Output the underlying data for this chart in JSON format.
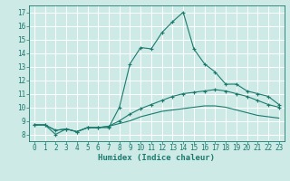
{
  "xlabel": "Humidex (Indice chaleur)",
  "background_color": "#ceeae6",
  "line_color": "#1a7a6e",
  "grid_color": "#b0d8d4",
  "xlim": [
    -0.5,
    23.5
  ],
  "ylim": [
    7.5,
    17.5
  ],
  "yticks": [
    8,
    9,
    10,
    11,
    12,
    13,
    14,
    15,
    16,
    17
  ],
  "xticks": [
    0,
    1,
    2,
    3,
    4,
    5,
    6,
    7,
    8,
    9,
    10,
    11,
    12,
    13,
    14,
    15,
    16,
    17,
    18,
    19,
    20,
    21,
    22,
    23
  ],
  "line1_x": [
    0,
    1,
    2,
    3,
    4,
    5,
    6,
    7,
    8,
    9,
    10,
    11,
    12,
    13,
    14,
    15,
    16,
    17,
    18,
    19,
    20,
    21,
    22,
    23
  ],
  "line1_y": [
    8.7,
    8.7,
    8.0,
    8.4,
    8.2,
    8.5,
    8.5,
    8.5,
    10.0,
    13.2,
    14.4,
    14.3,
    15.5,
    16.3,
    17.0,
    14.3,
    13.2,
    12.6,
    11.7,
    11.7,
    11.2,
    11.0,
    10.8,
    10.2
  ],
  "line2_x": [
    0,
    1,
    2,
    3,
    4,
    5,
    6,
    7,
    8,
    9,
    10,
    11,
    12,
    13,
    14,
    15,
    16,
    17,
    18,
    19,
    20,
    21,
    22,
    23
  ],
  "line2_y": [
    8.7,
    8.7,
    8.3,
    8.4,
    8.2,
    8.5,
    8.5,
    8.6,
    9.0,
    9.5,
    9.9,
    10.2,
    10.5,
    10.8,
    11.0,
    11.1,
    11.2,
    11.3,
    11.2,
    11.0,
    10.8,
    10.5,
    10.2,
    10.0
  ],
  "line3_x": [
    0,
    1,
    2,
    3,
    4,
    5,
    6,
    7,
    8,
    9,
    10,
    11,
    12,
    13,
    14,
    15,
    16,
    17,
    18,
    19,
    20,
    21,
    22,
    23
  ],
  "line3_y": [
    8.7,
    8.7,
    8.3,
    8.4,
    8.2,
    8.5,
    8.5,
    8.6,
    8.8,
    9.0,
    9.3,
    9.5,
    9.7,
    9.8,
    9.9,
    10.0,
    10.1,
    10.1,
    10.0,
    9.8,
    9.6,
    9.4,
    9.3,
    9.2
  ]
}
